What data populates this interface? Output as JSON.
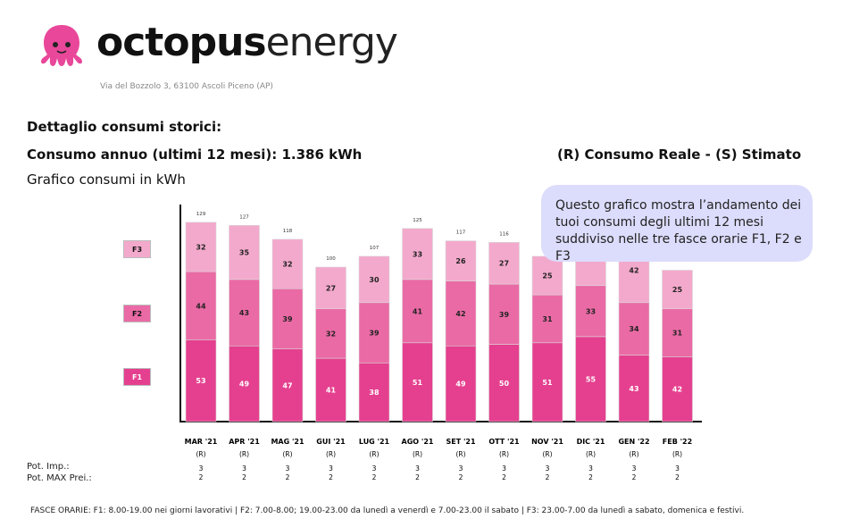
{
  "header": {
    "logo_text_bold": "octopus",
    "logo_text_light": "energy",
    "address": "Via del Bozzolo 3, 63100 Ascoli Piceno (AP)"
  },
  "section_title": "Dettaglio consumi storici:",
  "annual_consumption": "Consumo annuo (ultimi 12 mesi): 1.386 kWh",
  "legend_rs": "(R) Consumo Reale - (S) Stimato",
  "chart_subtitle": "Grafico consumi in kWh",
  "bubble_text": "Questo grafico mostra l’andamento dei tuoi consumi degli ultimi 12 mesi suddiviso nelle tre fasce orarie F1, F2 e F3",
  "band_labels": {
    "f1": "F1",
    "f2": "F2",
    "f3": "F3"
  },
  "row_labels": {
    "pot_imp": "Pot. Imp.:",
    "pot_max": "Pot. MAX Prei.:"
  },
  "footer": "FASCE ORARIE: F1: 8.00-19.00 nei giorni lavorativi | F2: 7.00-8.00; 19.00-23.00 da lunedì a venerdì e 7.00-23.00 il sabato | F3: 23.00-7.00 da lunedì a sabato, domenica e festivi.",
  "colors": {
    "f1": "#e5408f",
    "f2": "#ea6aa5",
    "f3": "#f3a9cc",
    "bubble": "#dcdcfc",
    "logo": "#e8479a"
  },
  "chart_data": {
    "type": "bar",
    "stacked": true,
    "categories": [
      "MAR '21",
      "APR '21",
      "MAG '21",
      "GUI '21",
      "LUG '21",
      "AGO '21",
      "SET '21",
      "OTT '21",
      "NOV '21",
      "DIC '21",
      "GEN '22",
      "FEB '22"
    ],
    "reading_type": [
      "(R)",
      "(R)",
      "(R)",
      "(R)",
      "(R)",
      "(R)",
      "(R)",
      "(R)",
      "(R)",
      "(R)",
      "(R)",
      "(R)"
    ],
    "series": [
      {
        "name": "F1",
        "values": [
          53,
          49,
          47,
          41,
          38,
          51,
          49,
          50,
          51,
          55,
          43,
          42
        ]
      },
      {
        "name": "F2",
        "values": [
          44,
          43,
          39,
          32,
          39,
          41,
          42,
          39,
          31,
          33,
          34,
          31
        ]
      },
      {
        "name": "F3",
        "values": [
          32,
          35,
          32,
          27,
          30,
          33,
          26,
          27,
          25,
          null,
          42,
          25
        ]
      }
    ],
    "totals": [
      129,
      127,
      118,
      100,
      107,
      125,
      117,
      116,
      null,
      null,
      null,
      null
    ],
    "pot_imp": [
      "3",
      "3",
      "3",
      "3",
      "3",
      "3",
      "3",
      "3",
      "3",
      "3",
      "3",
      "3"
    ],
    "pot_max": [
      "2",
      "2",
      "2",
      "2",
      "2",
      "2",
      "2",
      "2",
      "2",
      "2",
      "2",
      "2"
    ],
    "ylim": [
      0,
      140
    ],
    "grid": false
  }
}
